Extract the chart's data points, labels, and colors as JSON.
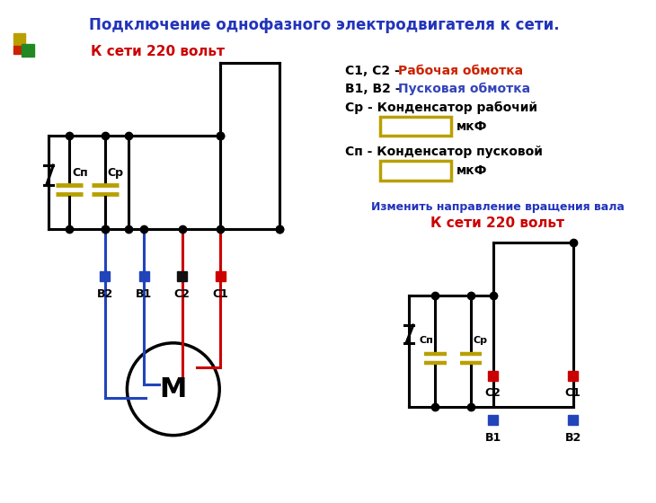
{
  "title": "Подключение однофазного электродвигателя к сети.",
  "title_color": "#2233bb",
  "bg_color": "#ffffff",
  "label_220": "К сети 220 вольт",
  "label_220_color": "#cc0000",
  "legend_c1c2_pre": "С1, С2 - ",
  "legend_c1c2_post": "Рабочая обмотка",
  "legend_c1c2_color": "#cc2200",
  "legend_b1b2_pre": "В1, В2 - ",
  "legend_b1b2_post": "Пусковая обмотка",
  "legend_b1b2_color": "#3344bb",
  "legend_cr": "Ср - Конденсатор рабочий",
  "legend_cp": "Сп - Конденсатор пусковой",
  "legend_mkf": "мкФ",
  "change_dir": "Изменить направление вращения вала",
  "change_dir_color": "#2233bb",
  "label_220_2": "К сети 220 вольт",
  "label_220_2_color": "#cc0000",
  "cap_color": "#b8a000",
  "wire_color": "#000000",
  "red_wire": "#cc0000",
  "blue_wire": "#2244bb",
  "c1_color": "#cc0000",
  "c2_color": "#cc0000",
  "b1_color": "#2244bb",
  "b2_color": "#2244bb",
  "sq_olive": "#b8a000",
  "sq_red": "#cc2200",
  "sq_green": "#228822"
}
